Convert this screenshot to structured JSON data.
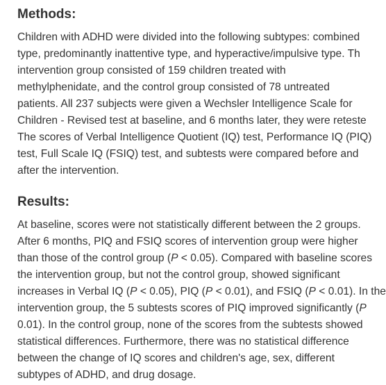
{
  "sections": [
    {
      "heading": "Methods:",
      "lines": [
        [
          "Children with ADHD were divided into the following subtypes: combined"
        ],
        [
          "type, predominantly inattentive type, and hyperactive/impulsive type. Th"
        ],
        [
          "intervention group consisted of 159 children treated with"
        ],
        [
          "methylphenidate, and the control group consisted of 78 untreated"
        ],
        [
          "patients. All 237 subjects were given a Wechsler Intelligence Scale for"
        ],
        [
          "Children - Revised test at baseline, and 6 months later, they were reteste"
        ],
        [
          "The scores of Verbal Intelligence Quotient (IQ) test, Performance IQ (PIQ)"
        ],
        [
          "test, Full Scale IQ (FSIQ) test, and subtests were compared before and"
        ],
        [
          "after the intervention."
        ]
      ]
    },
    {
      "heading": "Results:",
      "lines": [
        [
          "At baseline, scores were not statistically different between the 2 groups."
        ],
        [
          "After 6 months, PIQ and FSIQ scores of intervention group were higher"
        ],
        [
          "than those of the control group (",
          "P",
          " < 0.05). Compared with baseline scores"
        ],
        [
          "the intervention group, but not the control group, showed significant"
        ],
        [
          "increases in Verbal IQ (",
          "P",
          " < 0.05), PIQ (",
          "P",
          " < 0.01), and FSIQ (",
          "P",
          " < 0.01). In the"
        ],
        [
          "intervention group, the 5 subtests scores of PIQ improved significantly (",
          "P"
        ],
        [
          "0.01). In the control group, none of the scores from the subtests showed"
        ],
        [
          "statistical differences. Furthermore, there was no statistical difference"
        ],
        [
          "between the change of IQ scores and children's age, sex, different"
        ],
        [
          "subtypes of ADHD, and drug dosage."
        ]
      ]
    }
  ]
}
